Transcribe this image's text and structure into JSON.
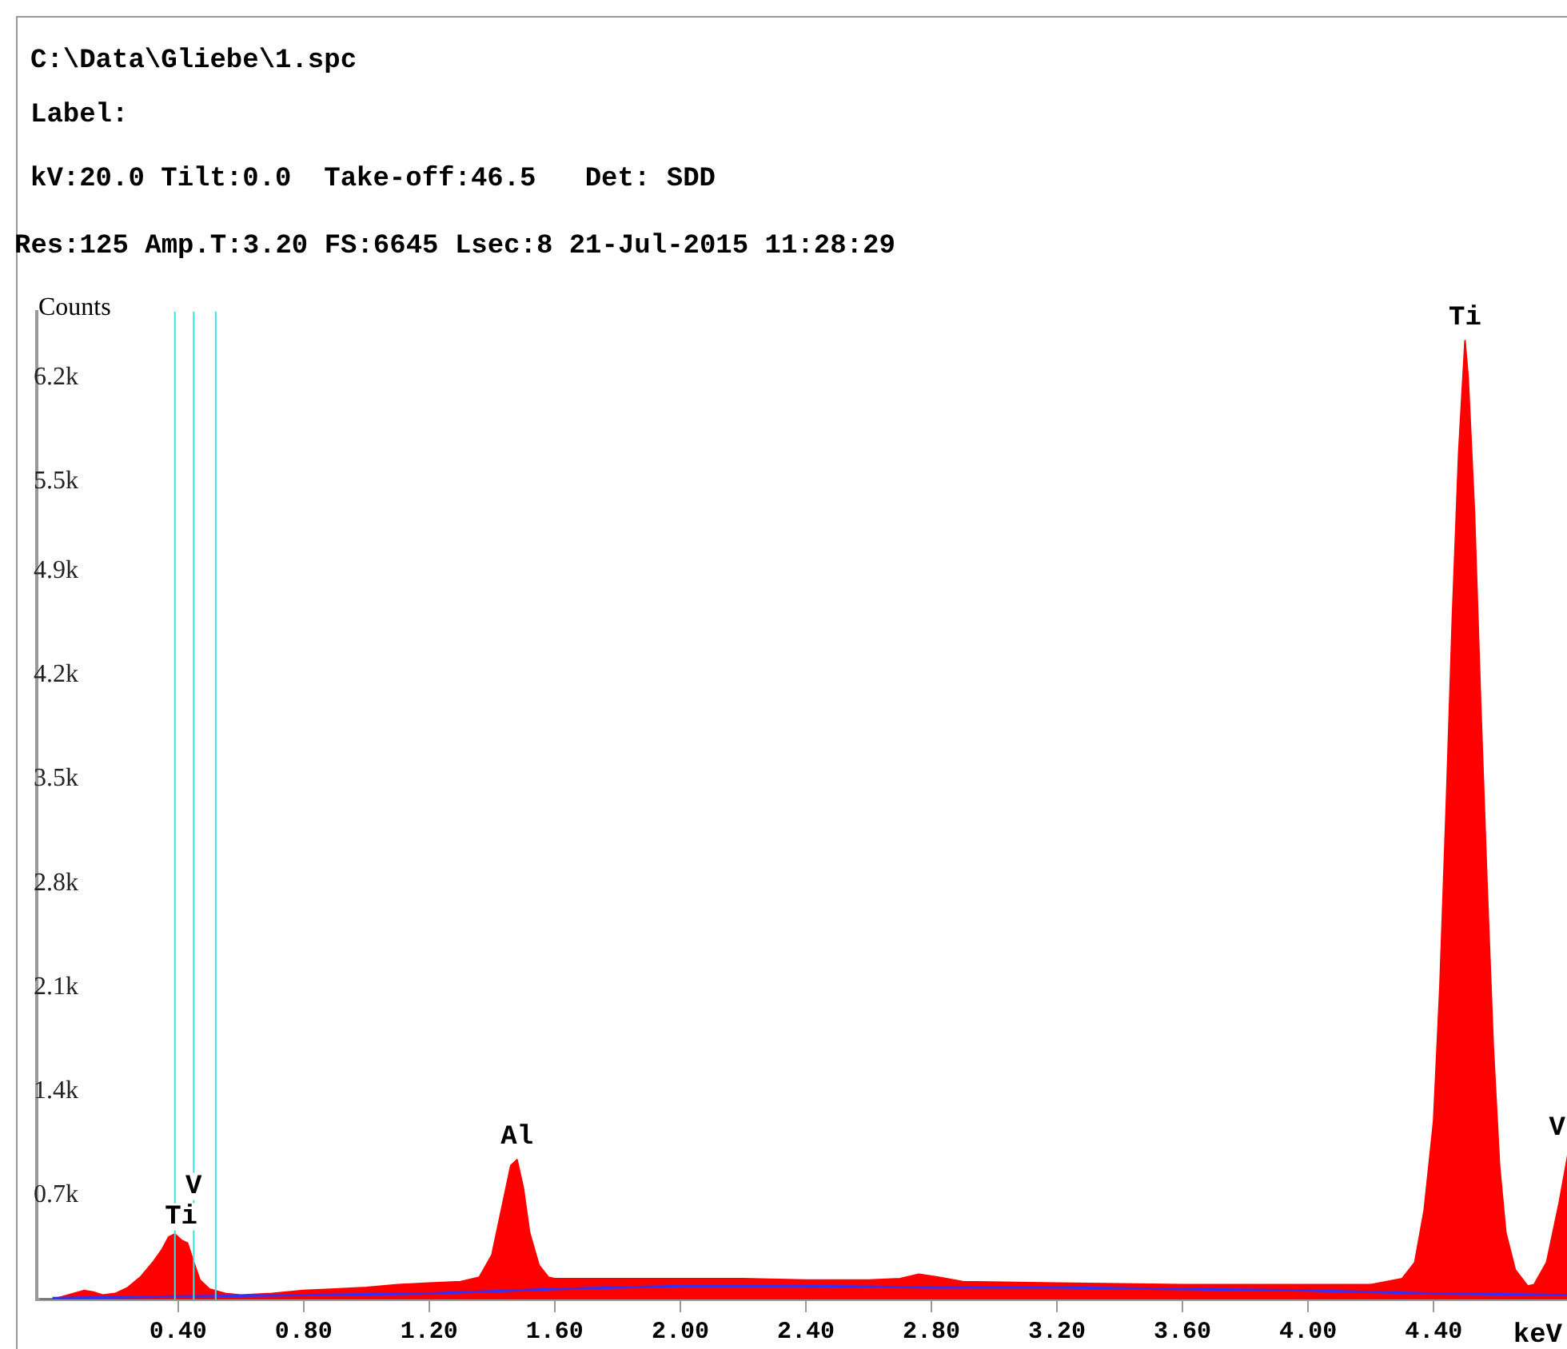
{
  "chart_data": {
    "type": "area",
    "title": "C:\\Data\\Gliebe\\1.spc",
    "subtitle": "Label:",
    "annotations": [
      "kV:20.0 Tilt:0.0  Take-off:46.5   Det: SDD",
      "Res:125 Amp.T:3.20 FS:6645 Lsec:8 21-Jul-2015 11:28:29",
      {
        "text": "Ti",
        "x": 0.41,
        "y": 400
      },
      {
        "text": "V",
        "x": 0.45,
        "y": 250
      },
      {
        "text": "Al",
        "x": 1.48,
        "y": 940
      },
      {
        "text": "Ti",
        "x": 4.5,
        "y": 6450
      },
      {
        "text": "V",
        "x": 4.83,
        "y": 1000
      }
    ],
    "xlabel": "keV",
    "ylabel": "Counts",
    "series": [
      {
        "color": "#ff0000",
        "x": [
          -0.04,
          0.0,
          0.05,
          0.1,
          0.13,
          0.16,
          0.2,
          0.24,
          0.28,
          0.32,
          0.35,
          0.37,
          0.39,
          0.41,
          0.43,
          0.45,
          0.47,
          0.5,
          0.55,
          0.6,
          0.7,
          0.8,
          0.9,
          1.0,
          1.1,
          1.2,
          1.3,
          1.36,
          1.4,
          1.43,
          1.46,
          1.48,
          1.5,
          1.52,
          1.55,
          1.58,
          1.6,
          1.8,
          2.0,
          2.2,
          2.4,
          2.6,
          2.7,
          2.76,
          2.82,
          2.9,
          3.2,
          3.6,
          4.0,
          4.2,
          4.3,
          4.34,
          4.37,
          4.4,
          4.42,
          4.44,
          4.46,
          4.48,
          4.5,
          4.51,
          4.53,
          4.55,
          4.57,
          4.59,
          4.61,
          4.63,
          4.66,
          4.7,
          4.72,
          4.76,
          4.8,
          4.83
        ],
        "values": [
          0,
          0,
          30,
          60,
          50,
          30,
          40,
          80,
          150,
          250,
          340,
          420,
          440,
          400,
          380,
          250,
          130,
          70,
          40,
          30,
          40,
          60,
          70,
          80,
          100,
          110,
          120,
          150,
          300,
          600,
          900,
          940,
          750,
          450,
          230,
          150,
          140,
          140,
          140,
          140,
          130,
          130,
          140,
          170,
          150,
          120,
          110,
          100,
          100,
          100,
          140,
          250,
          600,
          1200,
          2100,
          3300,
          4600,
          5700,
          6450,
          6200,
          5300,
          4000,
          2800,
          1700,
          900,
          450,
          200,
          90,
          100,
          250,
          650,
          1000
        ]
      },
      {
        "type": "line",
        "color": "#3030ff",
        "x": [
          0.0,
          0.4,
          0.8,
          1.2,
          1.6,
          2.0,
          2.4,
          2.8,
          3.2,
          3.6,
          4.0,
          4.4,
          4.83
        ],
        "values": [
          10,
          20,
          30,
          40,
          70,
          90,
          90,
          80,
          80,
          70,
          60,
          40,
          30
        ]
      }
    ],
    "xlim": [
      -0.05,
      4.83
    ],
    "xticks": [
      {
        "value": 0.4,
        "label": "0.40"
      },
      {
        "value": 0.8,
        "label": "0.80"
      },
      {
        "value": 1.2,
        "label": "1.20"
      },
      {
        "value": 1.6,
        "label": "1.60"
      },
      {
        "value": 2.0,
        "label": "2.00"
      },
      {
        "value": 2.4,
        "label": "2.40"
      },
      {
        "value": 2.8,
        "label": "2.80"
      },
      {
        "value": 3.2,
        "label": "3.20"
      },
      {
        "value": 3.6,
        "label": "3.60"
      },
      {
        "value": 4.0,
        "label": "4.00"
      },
      {
        "value": 4.4,
        "label": "4.40"
      }
    ],
    "ylim": [
      0,
      6645
    ],
    "yticks": [
      {
        "value": 700,
        "label": "0.7k"
      },
      {
        "value": 1400,
        "label": "1.4k"
      },
      {
        "value": 2100,
        "label": "2.1k"
      },
      {
        "value": 2800,
        "label": "2.8k"
      },
      {
        "value": 3500,
        "label": "3.5k"
      },
      {
        "value": 4200,
        "label": "4.2k"
      },
      {
        "value": 4900,
        "label": "4.9k"
      },
      {
        "value": 5500,
        "label": "5.5k"
      },
      {
        "value": 6200,
        "label": "6.2k"
      }
    ],
    "ref_lines": [
      {
        "axis": "x",
        "value": 0.39,
        "color": "#40e0e0"
      },
      {
        "axis": "x",
        "value": 0.45,
        "color": "#40e0e0"
      },
      {
        "axis": "x",
        "value": 0.52,
        "color": "#40e0e0"
      }
    ],
    "grid": false,
    "legend": false,
    "marker": "none"
  }
}
